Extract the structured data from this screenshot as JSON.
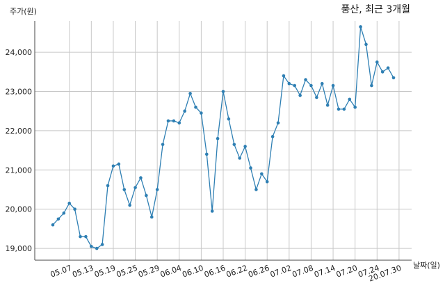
{
  "chart_data": {
    "type": "line",
    "title": "풍산, 최근 3개월",
    "ylabel": "주가(원)",
    "xlabel": "날짜(일)",
    "ylim": [
      18700,
      24800
    ],
    "yticks": [
      19000,
      20000,
      21000,
      22000,
      23000,
      24000
    ],
    "ytick_labels": [
      "19,000",
      "20,000",
      "21,000",
      "22,000",
      "23,000",
      "24,000"
    ],
    "xtick_labels": [
      "05.07",
      "05.13",
      "05.19",
      "05.25",
      "05.29",
      "06.04",
      "06.10",
      "06.16",
      "06.22",
      "06.26",
      "07.02",
      "07.08",
      "07.14",
      "07.20",
      "07.24",
      "20.07.30"
    ],
    "xtick_index": [
      3,
      7,
      11,
      15,
      19,
      23,
      27,
      31,
      35,
      39,
      43,
      47,
      51,
      55,
      59,
      63
    ],
    "grid": true,
    "line_color": "#2e7fb3",
    "series": [
      {
        "values": [
          19600,
          19750,
          19900,
          20150,
          20000,
          19300,
          19300,
          19050,
          19000,
          19100,
          20600,
          21100,
          21150,
          20500,
          20100,
          20550,
          20800,
          20350,
          19800,
          20500,
          21650,
          22250,
          22250,
          22200,
          22500,
          22950,
          22600,
          22450,
          21400,
          19950,
          21800,
          23000,
          22300,
          21650,
          21300,
          21600,
          21050,
          20500,
          20900,
          20700,
          21850,
          22200,
          23400,
          23200,
          23150,
          22900,
          23300,
          23150,
          22850,
          23200,
          22650,
          23150,
          22550,
          22550,
          22800,
          22600,
          24650,
          24200,
          23150,
          23750,
          23500,
          23600,
          23350
        ]
      }
    ]
  }
}
